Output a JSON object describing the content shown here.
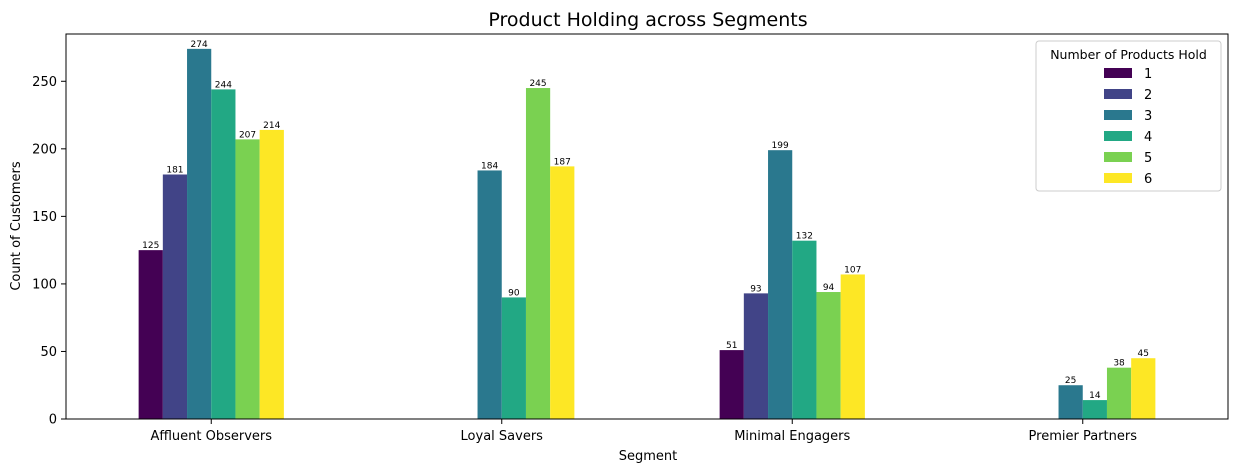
{
  "chart_data": {
    "type": "bar",
    "title": "Product Holding across Segments",
    "xlabel": "Segment",
    "ylabel": "Count of Customers",
    "ylim": [
      0,
      285
    ],
    "yticks": [
      0,
      50,
      100,
      150,
      200,
      250
    ],
    "grid": false,
    "legend": {
      "title": "Number of Products Hold",
      "placement": "top-right"
    },
    "categories": [
      "Affluent Observers",
      "Loyal Savers",
      "Minimal Engagers",
      "Premier Partners"
    ],
    "series": [
      {
        "name": "1",
        "color": "#440154",
        "values": [
          125,
          null,
          51,
          null
        ]
      },
      {
        "name": "2",
        "color": "#414487",
        "values": [
          181,
          null,
          93,
          null
        ]
      },
      {
        "name": "3",
        "color": "#2a788e",
        "values": [
          274,
          184,
          199,
          25
        ]
      },
      {
        "name": "4",
        "color": "#22a884",
        "values": [
          244,
          90,
          132,
          14
        ]
      },
      {
        "name": "5",
        "color": "#7ad151",
        "values": [
          207,
          245,
          94,
          38
        ]
      },
      {
        "name": "6",
        "color": "#fde725",
        "values": [
          214,
          187,
          107,
          45
        ]
      }
    ]
  }
}
